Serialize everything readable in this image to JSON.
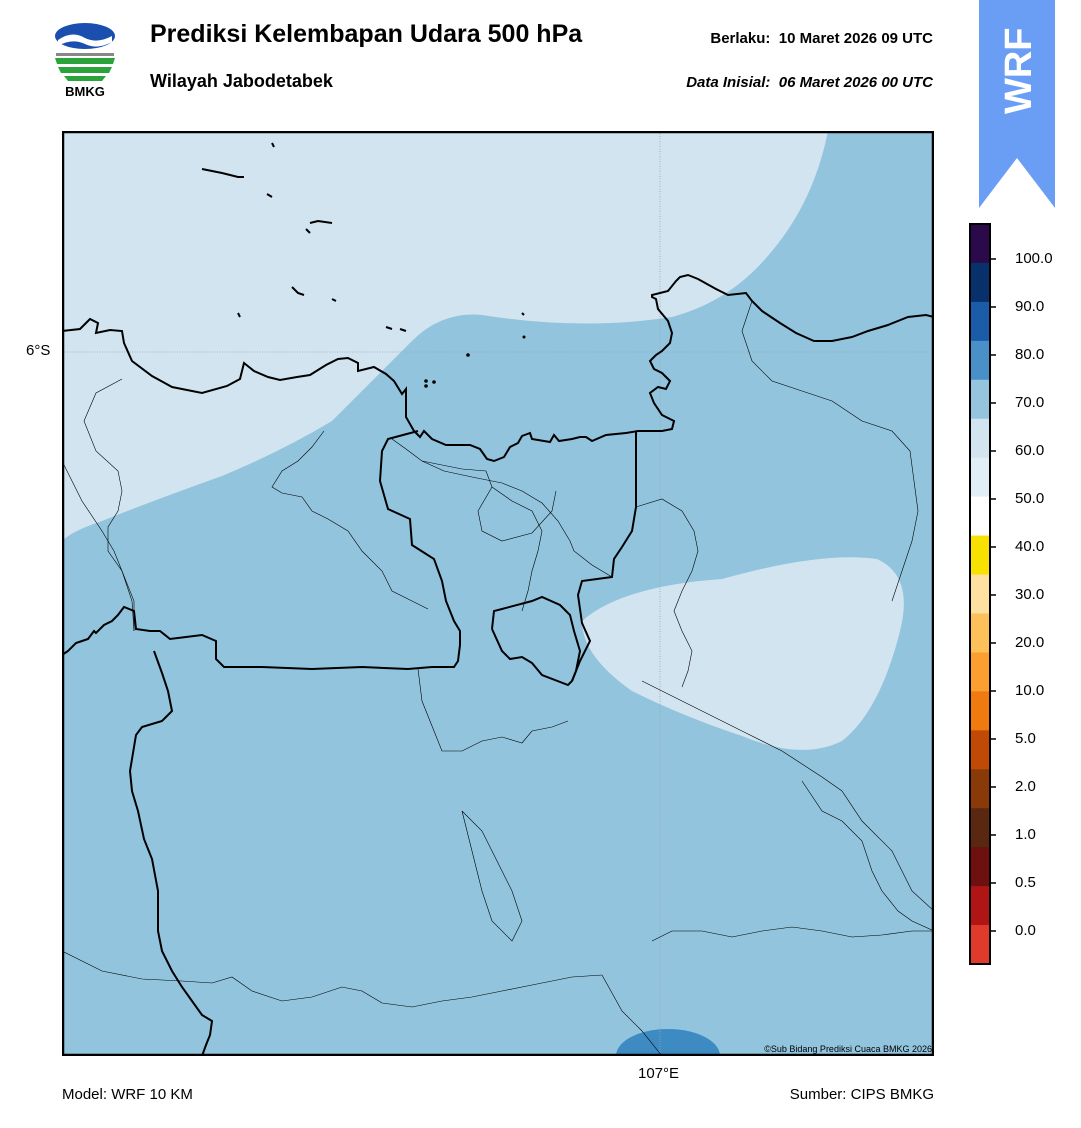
{
  "header": {
    "title": "Prediksi Kelembapan Udara 500 hPa",
    "subtitle": "Wilayah Jabodetabek",
    "valid_label": "Berlaku:",
    "valid_time": "10 Maret 2026 09 UTC",
    "init_label": "Data Inisial:",
    "init_time": "06 Maret 2026 00 UTC",
    "logo_text": "BMKG",
    "badge_text": "WRF",
    "badge_color": "#6a9ef5"
  },
  "map": {
    "lat_label": "6°S",
    "lon_label": "107°E",
    "copyright": "©Sub Bidang Prediksi Cuaca BMKG 2026"
  },
  "footer": {
    "model": "Model: WRF 10 KM",
    "source": "Sumber: CIPS BMKG"
  },
  "colorbar": {
    "labels": [
      "0.0",
      "0.5",
      "1.0",
      "2.0",
      "5.0",
      "10.0",
      "20.0",
      "30.0",
      "40.0",
      "50.0",
      "60.0",
      "70.0",
      "80.0",
      "90.0",
      "100.0"
    ],
    "colors": [
      "#e03a2c",
      "#b01515",
      "#6e1010",
      "#5a2810",
      "#8a3a08",
      "#c04a05",
      "#ef7a10",
      "#fba030",
      "#fec05a",
      "#fee0a0",
      "#f8e000",
      "#ffffff",
      "#e2eef6",
      "#d1e4f0",
      "#94c4de",
      "#4a90c8",
      "#1a5ca8",
      "#08306b",
      "#2a0a4a"
    ]
  },
  "legend_colors": {
    "humidity_50_60": "#d1e4f0",
    "humidity_60_70": "#92c4de",
    "humidity_70_80": "#3e8bc4"
  }
}
